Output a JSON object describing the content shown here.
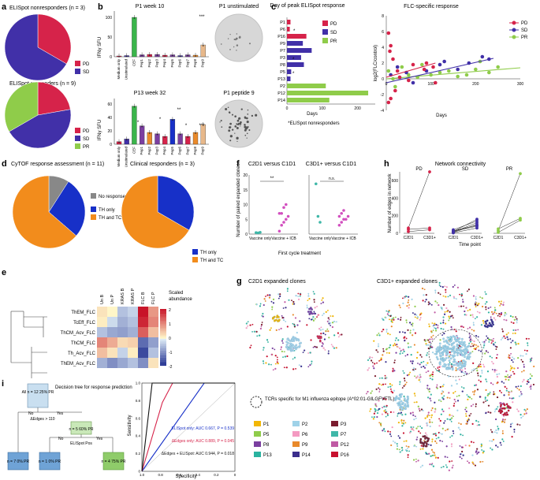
{
  "colors": {
    "pd": "#d6234a",
    "sd": "#4130a8",
    "pr": "#8fcc4a",
    "green": "#3ab54a",
    "grey": "#888888",
    "blue": "#1730c8",
    "orange": "#f28c1c",
    "dish": "#d7d7d7",
    "lb": "#9fd2e8",
    "teal": "#3fb7a8"
  },
  "panels": {
    "a": "a",
    "b": "b",
    "c": "c",
    "d": "d",
    "e": "e",
    "f": "f",
    "g": "g",
    "h": "h",
    "i": "i"
  },
  "a": {
    "title1": "ELISpot nonresponders (n = 3)",
    "title2": "ELISpot responders (n = 9)",
    "legend1": [
      "PD",
      "SD"
    ],
    "legend2": [
      "PD",
      "SD",
      "PR"
    ],
    "pie1": [
      {
        "label": "PD",
        "value": 1
      },
      {
        "label": "SD",
        "value": 2
      }
    ],
    "pie2": [
      {
        "label": "PD",
        "value": 2
      },
      {
        "label": "SD",
        "value": 4
      },
      {
        "label": "PR",
        "value": 3
      }
    ]
  },
  "b": {
    "title1": "P1 week 10",
    "title2": "P13 week 32",
    "ylabel": "IFNγ SFU",
    "dish1": "P1 unstimulated",
    "dish2": "P1 peptide 9",
    "yticks1": [
      "0",
      "50",
      "100"
    ],
    "yticks2": [
      "0",
      "20",
      "40",
      "60"
    ],
    "categories": [
      "Medium only",
      "Unstimulated",
      "CEF",
      "Pep1",
      "Pep2",
      "Pep3",
      "Pep4",
      "Pep5",
      "Pep6",
      "Pep7",
      "Pep8",
      "Pep9"
    ],
    "sig1": "***",
    "sig2a": "**",
    "sig2b": "***",
    "star": "*"
  },
  "c": {
    "title": "Day of peak ELISpot response",
    "patients": [
      "P1",
      "P6",
      "P16",
      "P9",
      "P7",
      "P3",
      "P8",
      "P5",
      "P13",
      "P2",
      "P12",
      "P14"
    ],
    "stars": [
      "*",
      "*",
      "*"
    ],
    "xticks": [
      "0",
      "100",
      "200"
    ],
    "xlabel": "Days",
    "legend": [
      "PD",
      "SD",
      "PR"
    ],
    "footnote": "*ELISpot nonresponders",
    "flc_title": "FLC-specific response",
    "flc_ylabel": "log2(FLC/control)",
    "flc_xlabel": "Days",
    "flc_xticks": [
      "0",
      "100",
      "200",
      "300"
    ],
    "flc_yticks": [
      "-4",
      "-2",
      "0",
      "2",
      "4",
      "6",
      "8"
    ],
    "flc_legend": [
      "PD",
      "SD",
      "PR"
    ]
  },
  "d": {
    "title1": "CyTOF response assessment (n = 11)",
    "title2": "Clinical responders (n = 3)",
    "legend1": [
      "No responses",
      "TH only",
      "TH and TC"
    ],
    "legend2": [
      "TH only",
      "TH and TC"
    ]
  },
  "e": {
    "columns": [
      "Un B",
      "Un P",
      "KRAS B",
      "KRAS P",
      "FLC B",
      "FLC P"
    ],
    "rows": [
      "ThEM_FLC",
      "TcEff_FLC",
      "ThCM_Acv_FLC",
      "ThCM_FLC",
      "Th_Acv_FLC",
      "ThEM_Acv_FLC"
    ],
    "values": [
      [
        0.2,
        0.0,
        -0.6,
        -0.4,
        2.4,
        1.0
      ],
      [
        0.1,
        -0.3,
        -0.8,
        -0.6,
        2.2,
        1.2
      ],
      [
        -0.6,
        -0.9,
        -1.0,
        -0.8,
        1.6,
        0.6
      ],
      [
        1.2,
        0.8,
        0.3,
        0.4,
        -1.6,
        -1.0
      ],
      [
        0.6,
        0.2,
        -0.4,
        0.1,
        -2.0,
        -0.6
      ],
      [
        -0.8,
        -1.2,
        -0.9,
        -0.6,
        -1.2,
        0.2
      ]
    ],
    "scale_label": "Scaled abundance",
    "scale_ticks": [
      "2",
      "1",
      "0",
      "-1",
      "-2"
    ]
  },
  "f": {
    "title1": "C2D1 versus C1D1",
    "title2": "C3D1+ versus C1D1",
    "ylabel": "Number of paired expanded clones",
    "yticks": [
      "0",
      "5",
      "10",
      "15",
      "20"
    ],
    "xlabels": [
      "Vaccine only",
      "Vaccine + ICB",
      "Vaccine only",
      "Vaccine + ICB"
    ],
    "sig1": "**",
    "sig2": "n.s.",
    "xtitle": "First cycle treatment",
    "v1_only": [
      0.5,
      0.4,
      0.6
    ],
    "v1_icb": [
      1,
      3,
      4,
      5,
      6,
      7,
      7,
      9,
      10
    ],
    "v2_only": [
      17,
      6,
      4
    ],
    "v2_icb": [
      3,
      4,
      5,
      5,
      6,
      6,
      7,
      8
    ]
  },
  "h": {
    "title": "Network connectivity",
    "groups": [
      "PD",
      "SD",
      "PR"
    ],
    "ylabel": "Number of edges in network",
    "yticks": [
      "0",
      "200",
      "400",
      "600"
    ],
    "xlabels": [
      "C2D1",
      "C3D1+",
      "C2D1",
      "C3D1+",
      "C2D1",
      "C3D1+"
    ],
    "xtitle": "Time point",
    "pd": [
      [
        60,
        700
      ],
      [
        45,
        60
      ],
      [
        20,
        40
      ]
    ],
    "sd": [
      [
        20,
        160
      ],
      [
        40,
        140
      ],
      [
        15,
        120
      ],
      [
        10,
        100
      ],
      [
        30,
        90
      ],
      [
        5,
        60
      ],
      [
        25,
        80
      ]
    ],
    "pr": [
      [
        30,
        680
      ],
      [
        50,
        170
      ],
      [
        10,
        150
      ]
    ]
  },
  "g": {
    "title1": "C2D1 expanded clones",
    "title2": "C3D1+ expanded clones",
    "epitope": "TCRs specific for M1 influenza epitope (A*02:01-GILGFVFTL)",
    "legend": [
      {
        "label": "P1",
        "color": "#f2b705"
      },
      {
        "label": "P2",
        "color": "#9fd2e8"
      },
      {
        "label": "P3",
        "color": "#7a1c2e"
      },
      {
        "label": "P5",
        "color": "#8fcc4a"
      },
      {
        "label": "P6",
        "color": "#f49ac1"
      },
      {
        "label": "P7",
        "color": "#3fb7a8"
      },
      {
        "label": "P8",
        "color": "#7b3fa0"
      },
      {
        "label": "P9",
        "color": "#e98a2b"
      },
      {
        "label": "P12",
        "color": "#c05aa4"
      },
      {
        "label": "P13",
        "color": "#2bb3a0"
      },
      {
        "label": "P14",
        "color": "#3b2e8c"
      },
      {
        "label": "P16",
        "color": "#c8102e"
      }
    ]
  },
  "i": {
    "tree_title": "Decision tree for response prediction",
    "root": "All n = 12 25% PR",
    "split1": "ΔEdges > 110",
    "no": "No",
    "yes": "Yes",
    "node2": "n = 5 60% PR",
    "split2": "ELISpot Pos",
    "leaf1": "n = 7 0% PR",
    "leaf2": "n = 1 0% PR",
    "leaf3": "n = 4 75% PR",
    "ylabel": "Sensitivity",
    "xlabel": "Specificity",
    "xticks": [
      "1.0",
      "0.8",
      "0.6",
      "0.4",
      "0.2",
      "0"
    ],
    "yticks": [
      "0",
      "0.2",
      "0.4",
      "0.6",
      "0.8",
      "1.0"
    ],
    "auc1": "ELISpot only: AUC 0.667, P = 0.539",
    "auc2": "ΔEdges only: AUC 0.889, P = 0.045",
    "auc3": "ΔEdges + ELISpot: AUC 0.944, P = 0.018"
  }
}
